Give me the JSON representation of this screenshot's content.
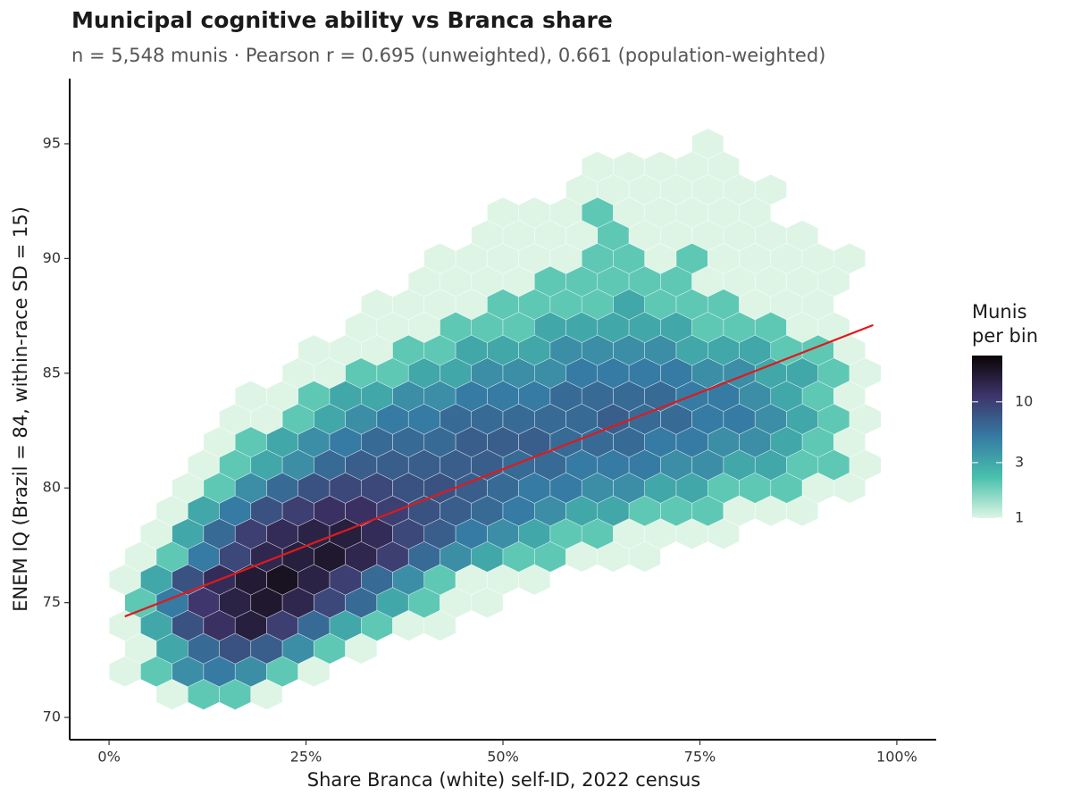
{
  "chart_data": {
    "type": "hexbin",
    "title": "Municipal cognitive ability vs Branca share",
    "subtitle": "n = 5,548 munis · Pearson r = 0.695 (unweighted), 0.661 (population-weighted)",
    "x_label": "Share Branca (white) self-ID, 2022 census",
    "y_label": "ENEM IQ (Brazil = 84, within-race SD = 15)",
    "xlim": [
      -5,
      105
    ],
    "ylim": [
      69.03,
      97.84
    ],
    "xticks": [
      {
        "value": 0,
        "label": "0%"
      },
      {
        "value": 25,
        "label": "25%"
      },
      {
        "value": 50,
        "label": "50%"
      },
      {
        "value": 75,
        "label": "75%"
      },
      {
        "value": 100,
        "label": "100%"
      }
    ],
    "yticks": [
      70,
      75,
      80,
      85,
      90,
      95
    ],
    "colorscale": [
      "#def5e5",
      "#49c1ad",
      "#357ba3",
      "#3e356b",
      "#0b0405"
    ],
    "color_log": true,
    "colorlim": [
      1,
      25
    ],
    "colorticks": [
      1,
      3,
      10
    ],
    "legend_title": [
      "Munis",
      "per bin"
    ],
    "fit": {
      "x": [
        2,
        97
      ],
      "y": [
        74.4,
        87.1
      ],
      "color": "#e0191c"
    },
    "bins": [
      {
        "y": 71,
        "x": [
          8,
          12,
          16,
          20
        ],
        "counts": [
          1,
          2,
          2,
          1
        ]
      },
      {
        "y": 72,
        "x": [
          2,
          6,
          10,
          14,
          18,
          22,
          26
        ],
        "counts": [
          1,
          2,
          4,
          5,
          4,
          2,
          1
        ]
      },
      {
        "y": 73,
        "x": [
          4,
          8,
          12,
          16,
          20,
          24,
          28,
          32
        ],
        "counts": [
          1,
          3,
          6,
          8,
          7,
          4,
          2,
          1
        ]
      },
      {
        "y": 74,
        "x": [
          2,
          6,
          10,
          14,
          18,
          22,
          26,
          30,
          34,
          38,
          42
        ],
        "counts": [
          1,
          3,
          8,
          12,
          16,
          10,
          6,
          3,
          2,
          1,
          1
        ]
      },
      {
        "y": 75,
        "x": [
          4,
          8,
          12,
          16,
          20,
          24,
          28,
          32,
          36,
          40,
          44,
          48
        ],
        "counts": [
          2,
          5,
          11,
          15,
          18,
          14,
          9,
          6,
          3,
          2,
          1,
          1
        ]
      },
      {
        "y": 76,
        "x": [
          2,
          6,
          10,
          14,
          18,
          22,
          26,
          30,
          34,
          38,
          42,
          46,
          50,
          54
        ],
        "counts": [
          1,
          3,
          8,
          13,
          17,
          20,
          15,
          10,
          6,
          4,
          2,
          1,
          1,
          1
        ]
      },
      {
        "y": 77,
        "x": [
          4,
          8,
          12,
          16,
          20,
          24,
          28,
          32,
          36,
          40,
          44,
          48,
          52,
          56,
          60,
          64,
          68
        ],
        "counts": [
          1,
          2,
          5,
          9,
          14,
          16,
          18,
          14,
          10,
          6,
          4,
          3,
          2,
          2,
          1,
          1,
          1
        ]
      },
      {
        "y": 78,
        "x": [
          6,
          10,
          14,
          18,
          22,
          26,
          30,
          34,
          38,
          42,
          46,
          50,
          54,
          58,
          62,
          66,
          70,
          74,
          78
        ],
        "counts": [
          1,
          3,
          6,
          10,
          13,
          15,
          16,
          13,
          9,
          7,
          5,
          4,
          3,
          2,
          2,
          1,
          1,
          1,
          1
        ]
      },
      {
        "y": 79,
        "x": [
          8,
          12,
          16,
          20,
          24,
          28,
          32,
          36,
          40,
          44,
          48,
          52,
          56,
          60,
          64,
          68,
          72,
          76,
          80,
          84,
          88
        ],
        "counts": [
          1,
          3,
          5,
          8,
          10,
          12,
          12,
          10,
          8,
          7,
          6,
          5,
          4,
          3,
          3,
          2,
          2,
          2,
          1,
          1,
          1
        ]
      },
      {
        "y": 80,
        "x": [
          10,
          14,
          18,
          22,
          26,
          30,
          34,
          38,
          42,
          46,
          50,
          54,
          58,
          62,
          66,
          70,
          74,
          78,
          82,
          86,
          90,
          94
        ],
        "counts": [
          1,
          2,
          4,
          6,
          8,
          9,
          9,
          8,
          8,
          7,
          6,
          5,
          5,
          4,
          4,
          3,
          3,
          2,
          2,
          2,
          1,
          1
        ]
      },
      {
        "y": 81,
        "x": [
          12,
          16,
          20,
          24,
          28,
          32,
          36,
          40,
          44,
          48,
          52,
          56,
          60,
          64,
          68,
          72,
          76,
          80,
          84,
          88,
          92,
          96
        ],
        "counts": [
          1,
          2,
          3,
          4,
          6,
          7,
          7,
          7,
          7,
          7,
          6,
          6,
          5,
          5,
          5,
          4,
          4,
          3,
          3,
          2,
          2,
          1
        ]
      },
      {
        "y": 82,
        "x": [
          14,
          18,
          22,
          26,
          30,
          34,
          38,
          42,
          46,
          50,
          54,
          58,
          62,
          66,
          70,
          74,
          78,
          82,
          86,
          90,
          94
        ],
        "counts": [
          1,
          2,
          3,
          4,
          5,
          6,
          6,
          6,
          7,
          7,
          7,
          6,
          6,
          6,
          5,
          5,
          4,
          4,
          3,
          2,
          1
        ]
      },
      {
        "y": 83,
        "x": [
          16,
          20,
          24,
          28,
          32,
          36,
          40,
          44,
          48,
          52,
          56,
          60,
          64,
          68,
          72,
          76,
          80,
          84,
          88,
          92,
          96
        ],
        "counts": [
          1,
          1,
          2,
          3,
          4,
          5,
          5,
          6,
          6,
          6,
          6,
          6,
          7,
          6,
          6,
          5,
          5,
          4,
          3,
          2,
          1
        ]
      },
      {
        "y": 84,
        "x": [
          18,
          22,
          26,
          30,
          34,
          38,
          42,
          46,
          50,
          54,
          58,
          62,
          66,
          70,
          74,
          78,
          82,
          86,
          90,
          94
        ],
        "counts": [
          1,
          1,
          2,
          3,
          3,
          4,
          4,
          5,
          5,
          5,
          6,
          6,
          6,
          6,
          5,
          5,
          4,
          3,
          2,
          1
        ]
      },
      {
        "y": 85,
        "x": [
          24,
          28,
          32,
          36,
          40,
          44,
          48,
          52,
          56,
          60,
          64,
          68,
          72,
          76,
          80,
          84,
          88,
          92,
          96
        ],
        "counts": [
          1,
          1,
          2,
          2,
          3,
          3,
          4,
          4,
          4,
          5,
          5,
          5,
          5,
          4,
          4,
          3,
          3,
          2,
          1
        ]
      },
      {
        "y": 86,
        "x": [
          26,
          30,
          34,
          38,
          42,
          46,
          50,
          54,
          58,
          62,
          66,
          70,
          74,
          78,
          82,
          86,
          90,
          94
        ],
        "counts": [
          1,
          1,
          1,
          2,
          2,
          3,
          3,
          3,
          4,
          4,
          4,
          4,
          3,
          3,
          3,
          2,
          2,
          1
        ]
      },
      {
        "y": 87,
        "x": [
          32,
          36,
          40,
          44,
          48,
          52,
          56,
          60,
          64,
          68,
          72,
          76,
          80,
          84,
          88,
          92
        ],
        "counts": [
          1,
          1,
          1,
          2,
          2,
          2,
          3,
          3,
          3,
          3,
          3,
          2,
          2,
          2,
          1,
          1
        ]
      },
      {
        "y": 88,
        "x": [
          34,
          38,
          42,
          46,
          50,
          54,
          58,
          62,
          66,
          70,
          74,
          78,
          82,
          86,
          90
        ],
        "counts": [
          1,
          1,
          1,
          1,
          2,
          2,
          2,
          2,
          3,
          2,
          2,
          2,
          1,
          1,
          1
        ]
      },
      {
        "y": 89,
        "x": [
          40,
          44,
          48,
          52,
          56,
          60,
          64,
          68,
          72,
          76,
          80,
          84,
          88,
          92
        ],
        "counts": [
          1,
          1,
          1,
          1,
          2,
          2,
          2,
          2,
          2,
          1,
          1,
          1,
          1,
          1
        ]
      },
      {
        "y": 90,
        "x": [
          42,
          46,
          50,
          54,
          58,
          62,
          66,
          70,
          74,
          78,
          82,
          86,
          90,
          94
        ],
        "counts": [
          1,
          1,
          1,
          1,
          1,
          2,
          2,
          1,
          2,
          1,
          1,
          1,
          1,
          1
        ]
      },
      {
        "y": 91,
        "x": [
          48,
          52,
          56,
          60,
          64,
          68,
          72,
          76,
          80,
          84,
          88
        ],
        "counts": [
          1,
          1,
          1,
          1,
          2,
          1,
          1,
          1,
          1,
          1,
          1
        ]
      },
      {
        "y": 92,
        "x": [
          50,
          54,
          58,
          62,
          66,
          70,
          74,
          78,
          82
        ],
        "counts": [
          1,
          1,
          1,
          2,
          1,
          1,
          1,
          1,
          1
        ]
      },
      {
        "y": 93,
        "x": [
          60,
          64,
          68,
          72,
          76,
          80,
          84
        ],
        "counts": [
          1,
          1,
          1,
          1,
          1,
          1,
          1
        ]
      },
      {
        "y": 94,
        "x": [
          62,
          66,
          70,
          74,
          78
        ],
        "counts": [
          1,
          1,
          1,
          1,
          1
        ]
      },
      {
        "y": 95,
        "x": [
          76
        ],
        "counts": [
          1
        ]
      }
    ]
  }
}
